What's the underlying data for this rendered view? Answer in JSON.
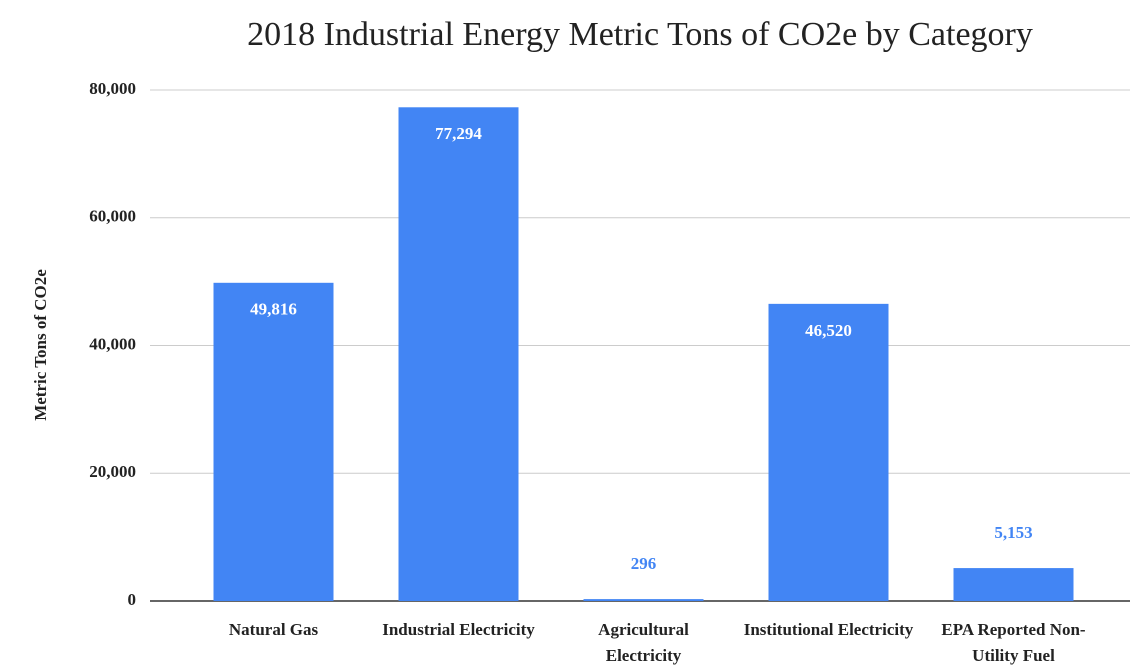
{
  "chart_data": {
    "type": "bar",
    "title": "2018 Industrial Energy Metric Tons of CO2e by Category",
    "ylabel": "Metric Tons of CO2e",
    "categories": [
      "Natural Gas",
      "Industrial Electricity",
      "Agricultural Electricity",
      "Institutional Electricity",
      "EPA Reported Non-Utility Fuel"
    ],
    "values": [
      49816,
      77294,
      296,
      46520,
      5153
    ],
    "value_labels": [
      "49,816",
      "77,294",
      "296",
      "46,520",
      "5,153"
    ],
    "color": "#4285f4",
    "ylim": [
      0,
      80000
    ],
    "yticks": [
      0,
      {
        "value": 20000,
        "label": "20,000"
      },
      {
        "value": 40000,
        "label": "40,000"
      },
      {
        "value": 60000,
        "label": "60,000"
      },
      {
        "value": 80000,
        "label": "80,000"
      }
    ],
    "grid": true
  }
}
